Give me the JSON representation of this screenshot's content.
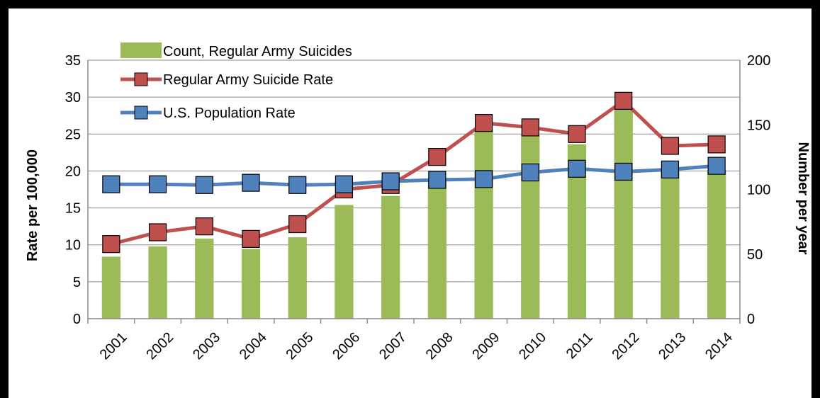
{
  "chart_data": {
    "type": "bar",
    "title": "",
    "categories": [
      "2001",
      "2002",
      "2003",
      "2004",
      "2005",
      "2006",
      "2007",
      "2008",
      "2009",
      "2010",
      "2011",
      "2012",
      "2013",
      "2014"
    ],
    "x_tick_labels": [
      "2001",
      "2002",
      "2003",
      "2004",
      "2005",
      "2006",
      "2007",
      "2008",
      "2009",
      "2010",
      "2011",
      "2012",
      "2013",
      "2014"
    ],
    "ylabel_left": "Rate per 100,000",
    "ylabel_right": "Number per year",
    "ylim_left": [
      0,
      35
    ],
    "ylim_right": [
      0,
      200
    ],
    "y_ticks_left": [
      "0",
      "5",
      "10",
      "15",
      "20",
      "25",
      "30",
      "35"
    ],
    "y_ticks_right": [
      "0",
      "50",
      "100",
      "150",
      "200"
    ],
    "grid": true,
    "legend_position": "top-left",
    "series": [
      {
        "name": "Count, Regular Army Suicides",
        "type": "bar",
        "axis": "right",
        "color": "#9BBB59",
        "values": [
          48,
          56,
          62,
          54,
          63,
          88,
          95,
          107,
          146,
          142,
          135,
          162,
          114,
          115
        ]
      },
      {
        "name": "Regular Army Suicide Rate",
        "type": "line",
        "axis": "left",
        "color": "#C0504D",
        "values": [
          10.1,
          11.7,
          12.5,
          10.8,
          12.8,
          17.5,
          18.1,
          21.9,
          26.5,
          25.9,
          25.0,
          29.5,
          23.4,
          23.6
        ]
      },
      {
        "name": "U.S. Population Rate",
        "type": "line",
        "axis": "left",
        "color": "#4F81BD",
        "values": [
          18.2,
          18.2,
          18.1,
          18.4,
          18.1,
          18.2,
          18.6,
          18.8,
          18.9,
          19.8,
          20.3,
          19.9,
          20.2,
          20.7
        ]
      }
    ]
  }
}
